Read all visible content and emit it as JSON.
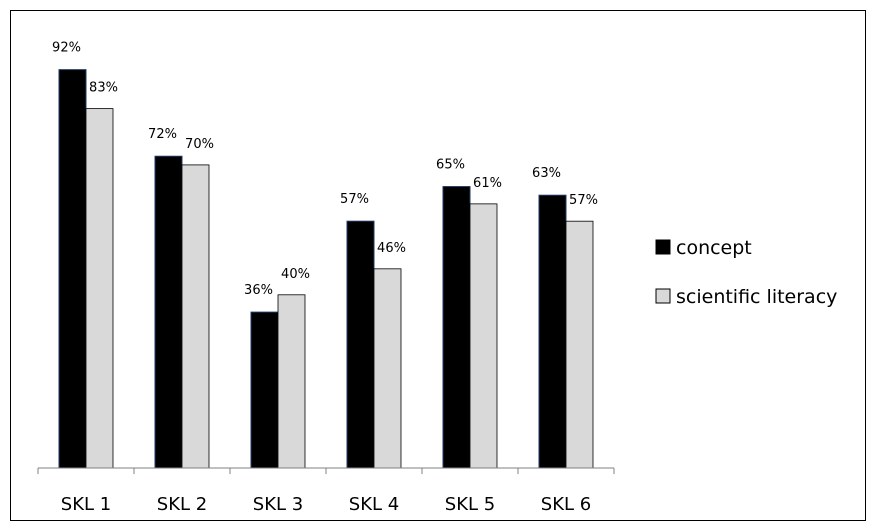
{
  "chart_data": {
    "type": "bar",
    "categories": [
      "SKL 1",
      "SKL 2",
      "SKL 3",
      "SKL 4",
      "SKL 5",
      "SKL 6"
    ],
    "series": [
      {
        "name": "concept",
        "color": "#000000",
        "values": [
          92,
          72,
          36,
          57,
          65,
          63
        ],
        "labels": [
          "92%",
          "72%",
          "36%",
          "57%",
          "65%",
          "63%"
        ]
      },
      {
        "name": "scientific literacy",
        "color": "#d9d9d9",
        "values": [
          83,
          70,
          40,
          46,
          61,
          57
        ],
        "labels": [
          "83%",
          "70%",
          "40%",
          "46%",
          "61%",
          "57%"
        ]
      }
    ],
    "title": "",
    "xlabel": "",
    "ylabel": "",
    "ylim": [
      0,
      100
    ],
    "grid": false,
    "legend_position": "right"
  }
}
